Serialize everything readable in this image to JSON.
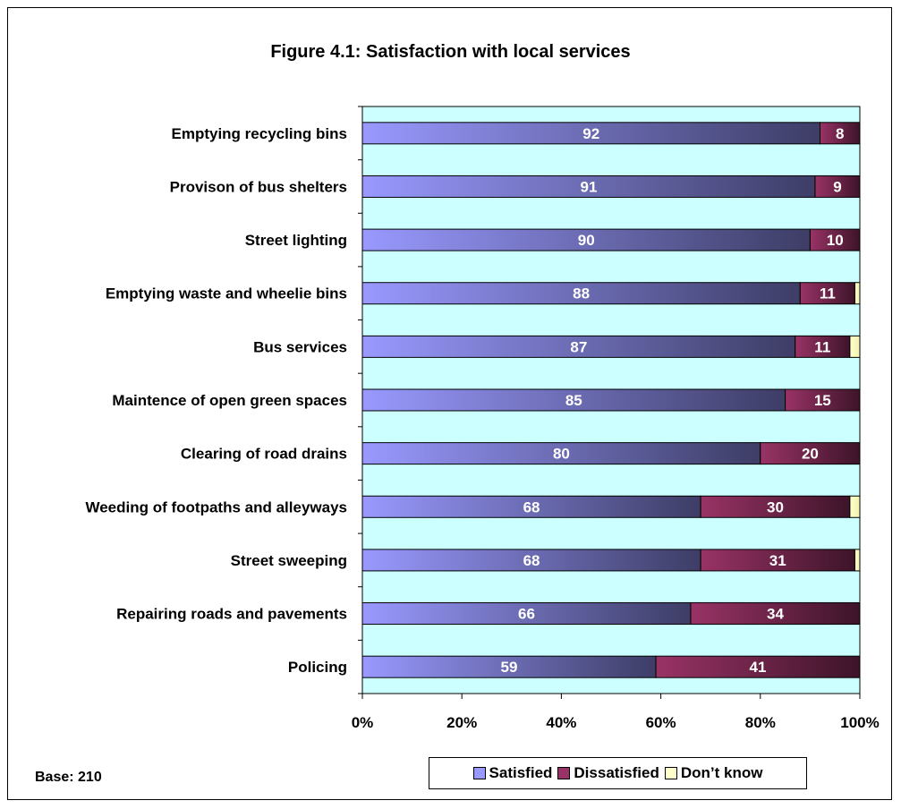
{
  "chart_data": {
    "type": "bar",
    "orientation": "horizontal",
    "stacked": true,
    "title": "Figure 4.1: Satisfaction with local services",
    "categories": [
      "Emptying recycling bins",
      "Provison of bus shelters",
      "Street lighting",
      "Emptying waste and wheelie bins",
      "Bus services",
      "Maintence of open green spaces",
      "Clearing of road drains",
      "Weeding of footpaths and alleyways",
      "Street sweeping",
      "Repairing roads and pavements",
      "Policing"
    ],
    "series": [
      {
        "name": "Satisfied",
        "values": [
          92,
          91,
          90,
          88,
          87,
          85,
          80,
          68,
          68,
          66,
          59
        ],
        "color": "#9999ff"
      },
      {
        "name": "Dissatisfied",
        "values": [
          8,
          9,
          10,
          11,
          11,
          15,
          20,
          30,
          31,
          34,
          41
        ],
        "color": "#993366"
      },
      {
        "name": "Don’t know",
        "values": [
          0,
          0,
          0,
          1,
          2,
          0,
          0,
          2,
          1,
          0,
          0
        ],
        "color": "#ffffcc"
      }
    ],
    "xlim": [
      0,
      100
    ],
    "x_ticks": [
      "0%",
      "20%",
      "40%",
      "60%",
      "80%",
      "100%"
    ],
    "plot_background": "#ccffff",
    "legend_position": "bottom-right",
    "grid": false
  },
  "base_note": "Base:  210"
}
